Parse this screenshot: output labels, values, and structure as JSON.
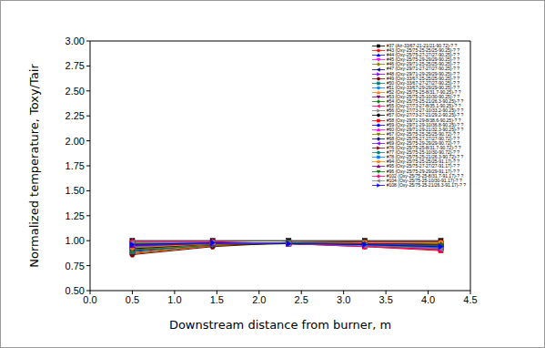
{
  "chart_data": {
    "type": "line",
    "x_label": "Downstream distance from burner, m",
    "y_label": "Normalized temperature, Toxy/Tair",
    "x": [
      0.5,
      1.45,
      2.35,
      3.25,
      4.15
    ],
    "xlim": [
      0,
      4.5
    ],
    "xticks": [
      {
        "value": 0,
        "label": "0.0"
      },
      0.5,
      {
        "value": 1,
        "label": "1.0"
      },
      1.5,
      {
        "value": 2,
        "label": "2.0"
      },
      2.5,
      {
        "value": 3,
        "label": "3.0"
      },
      3.5,
      {
        "value": 4,
        "label": "4.0"
      },
      4.5
    ],
    "ylim": [
      0.5,
      3
    ],
    "yticks": [
      {
        "value": 0.5,
        "label": "0.50"
      },
      0.75,
      {
        "value": 1,
        "label": "1.00"
      },
      1.25,
      {
        "value": 1.5,
        "label": "1.50"
      },
      1.75,
      {
        "value": 2,
        "label": "2.00"
      },
      2.25,
      {
        "value": 2.5,
        "label": "2.50"
      },
      2.75,
      {
        "value": 3,
        "label": "3.00"
      }
    ],
    "grid": false,
    "legend": "upper right",
    "series": [
      {
        "name": "#37 (Air-33/67-21-21/21-90.72)-? ?",
        "color": "#000000",
        "marker": "square",
        "values": [
          1.0,
          1.0,
          1.0,
          1.0,
          1.0
        ]
      },
      {
        "name": "#43 (Oxy-25/75-25-25/25-90.25)-? ?",
        "color": "#ff0000",
        "marker": "circle",
        "values": [
          0.88,
          0.95,
          0.98,
          0.98,
          0.97
        ]
      },
      {
        "name": "#44 (Oxy-25/75-27-27/27-90.25)-? ?",
        "color": "#0000ff",
        "marker": "triangle_up",
        "values": [
          0.9,
          0.96,
          0.98,
          0.98,
          0.96
        ]
      },
      {
        "name": "#45 (Oxy-25/75-29-29/29-90.25)-? ?",
        "color": "#ff00ff",
        "marker": "triangle_down",
        "values": [
          0.92,
          0.97,
          0.98,
          0.97,
          0.95
        ]
      },
      {
        "name": "#46 (Oxy-29/71-25-25/25-90.25)-? ?",
        "color": "#808000",
        "marker": "diamond",
        "values": [
          0.87,
          0.95,
          0.98,
          0.98,
          0.98
        ]
      },
      {
        "name": "#47 (Oxy-29/71-27-27/27-90.25)-? ?",
        "color": "#000080",
        "marker": "triangle_left",
        "values": [
          0.9,
          0.96,
          0.98,
          0.98,
          0.97
        ]
      },
      {
        "name": "#48 (Oxy-29/71-29-29/29-90.25)-? ?",
        "color": "#8000ff",
        "marker": "triangle_right",
        "values": [
          0.93,
          0.97,
          0.98,
          0.97,
          0.95
        ]
      },
      {
        "name": "#49 (Oxy-33/67-25-25/25-90.25)-? ?",
        "color": "#800000",
        "marker": "hexagon",
        "values": [
          0.86,
          0.94,
          0.98,
          0.99,
          0.99
        ]
      },
      {
        "name": "#50 (Oxy-33/67-27-27/27-90.25)-? ?",
        "color": "#008080",
        "marker": "square",
        "values": [
          0.89,
          0.96,
          0.98,
          0.98,
          0.97
        ]
      },
      {
        "name": "#51 (Oxy-33/67-29-29/29-90.25)-? ?",
        "color": "#0080ff",
        "marker": "circle",
        "values": [
          0.92,
          0.97,
          0.98,
          0.97,
          0.96
        ]
      },
      {
        "name": "#52 (Oxy-25/75-25-8/31.7-90.25)-? ?",
        "color": "#ff8000",
        "marker": "triangle_up",
        "values": [
          0.95,
          0.97,
          0.97,
          0.96,
          0.93
        ]
      },
      {
        "name": "#53 (Oxy-25/75-25-10/30-90.25)-? ?",
        "color": "#800080",
        "marker": "triangle_down",
        "values": [
          0.94,
          0.97,
          0.97,
          0.96,
          0.94
        ]
      },
      {
        "name": "#54 (Oxy-25/75-25-21/26.3-90.25)-? ?",
        "color": "#008000",
        "marker": "diamond",
        "values": [
          0.91,
          0.96,
          0.97,
          0.97,
          0.95
        ]
      },
      {
        "name": "#55 (Oxy-27/73-27-8/35.1-90.25)-? ?",
        "color": "#ff0080",
        "marker": "triangle_left",
        "values": [
          0.96,
          0.98,
          0.97,
          0.95,
          0.92
        ]
      },
      {
        "name": "#56 (Oxy-27/73-27-10/33.2-90.25)-? ?",
        "color": "#808080",
        "marker": "triangle_right",
        "values": [
          0.95,
          0.97,
          0.97,
          0.96,
          0.93
        ]
      },
      {
        "name": "#57 (Oxy-27/73-27-21/29.2-90.25)-? ?",
        "color": "#000000",
        "marker": "hexagon",
        "values": [
          0.92,
          0.96,
          0.97,
          0.97,
          0.95
        ]
      },
      {
        "name": "#58 (Oxy-29/71-29-8/38.6-90.25)-? ?",
        "color": "#ff0000",
        "marker": "square",
        "values": [
          0.98,
          0.98,
          0.97,
          0.94,
          0.9
        ]
      },
      {
        "name": "#59 (Oxy-29/71-29-10/36.8-90.25)-? ?",
        "color": "#0000ff",
        "marker": "circle",
        "values": [
          0.97,
          0.98,
          0.97,
          0.95,
          0.91
        ]
      },
      {
        "name": "#60 (Oxy-29/71-29-21/32.3-90.25)-? ?",
        "color": "#ff00ff",
        "marker": "triangle_up",
        "values": [
          0.94,
          0.97,
          0.97,
          0.96,
          0.94
        ]
      },
      {
        "name": "#67 (Oxy-25/75-25-25/25-90.72)-? ?",
        "color": "#808000",
        "marker": "triangle_down",
        "values": [
          0.91,
          0.96,
          0.98,
          0.98,
          0.97
        ]
      },
      {
        "name": "#68 (Oxy-25/75-27-27/27-90.72)-? ?",
        "color": "#000080",
        "marker": "diamond",
        "values": [
          0.93,
          0.97,
          0.98,
          0.97,
          0.96
        ]
      },
      {
        "name": "#69 (Oxy-25/75-29-29/29-90.72)-? ?",
        "color": "#8000ff",
        "marker": "triangle_left",
        "values": [
          0.95,
          0.97,
          0.98,
          0.97,
          0.95
        ]
      },
      {
        "name": "#76 (Oxy-25/75-25-8/31.7-90.72)-? ?",
        "color": "#800000",
        "marker": "triangle_right",
        "values": [
          0.97,
          0.98,
          0.97,
          0.95,
          0.92
        ]
      },
      {
        "name": "#77 (Oxy-25/75-25-10/30-90.72)-? ?",
        "color": "#008080",
        "marker": "hexagon",
        "values": [
          0.96,
          0.97,
          0.97,
          0.96,
          0.93
        ]
      },
      {
        "name": "#78 (Oxy-25/75-25-21/26.3-90.72)-? ?",
        "color": "#0080ff",
        "marker": "square",
        "values": [
          0.94,
          0.97,
          0.97,
          0.96,
          0.95
        ]
      },
      {
        "name": "#94 (Oxy-25/75-25-25/25-91.17)-? ?",
        "color": "#ff8000",
        "marker": "circle",
        "values": [
          0.93,
          0.97,
          0.98,
          0.98,
          0.98
        ]
      },
      {
        "name": "#95 (Oxy-25/75-27-27/27-91.17)-? ?",
        "color": "#800080",
        "marker": "triangle_up",
        "values": [
          0.95,
          0.97,
          0.98,
          0.97,
          0.96
        ]
      },
      {
        "name": "#96 (Oxy-25/75-29-29/29-91.17)-? ?",
        "color": "#008000",
        "marker": "triangle_down",
        "values": [
          0.97,
          0.98,
          0.98,
          0.96,
          0.95
        ]
      },
      {
        "name": "#102 (Oxy-25/75-25-8/31.7-91.17)-? ?",
        "color": "#ff0080",
        "marker": "diamond",
        "values": [
          0.99,
          0.99,
          0.97,
          0.94,
          0.91
        ]
      },
      {
        "name": "#104 (Oxy-25/75-25-10/30-91.17)-? ?",
        "color": "#808080",
        "marker": "triangle_left",
        "values": [
          0.98,
          0.98,
          0.97,
          0.95,
          0.92
        ]
      },
      {
        "name": "#108 (Oxy-25/75-25-21/26.3-91.17)-? ?",
        "color": "#0000ff",
        "marker": "triangle_right",
        "values": [
          0.96,
          0.98,
          0.97,
          0.96,
          0.94
        ]
      }
    ]
  }
}
